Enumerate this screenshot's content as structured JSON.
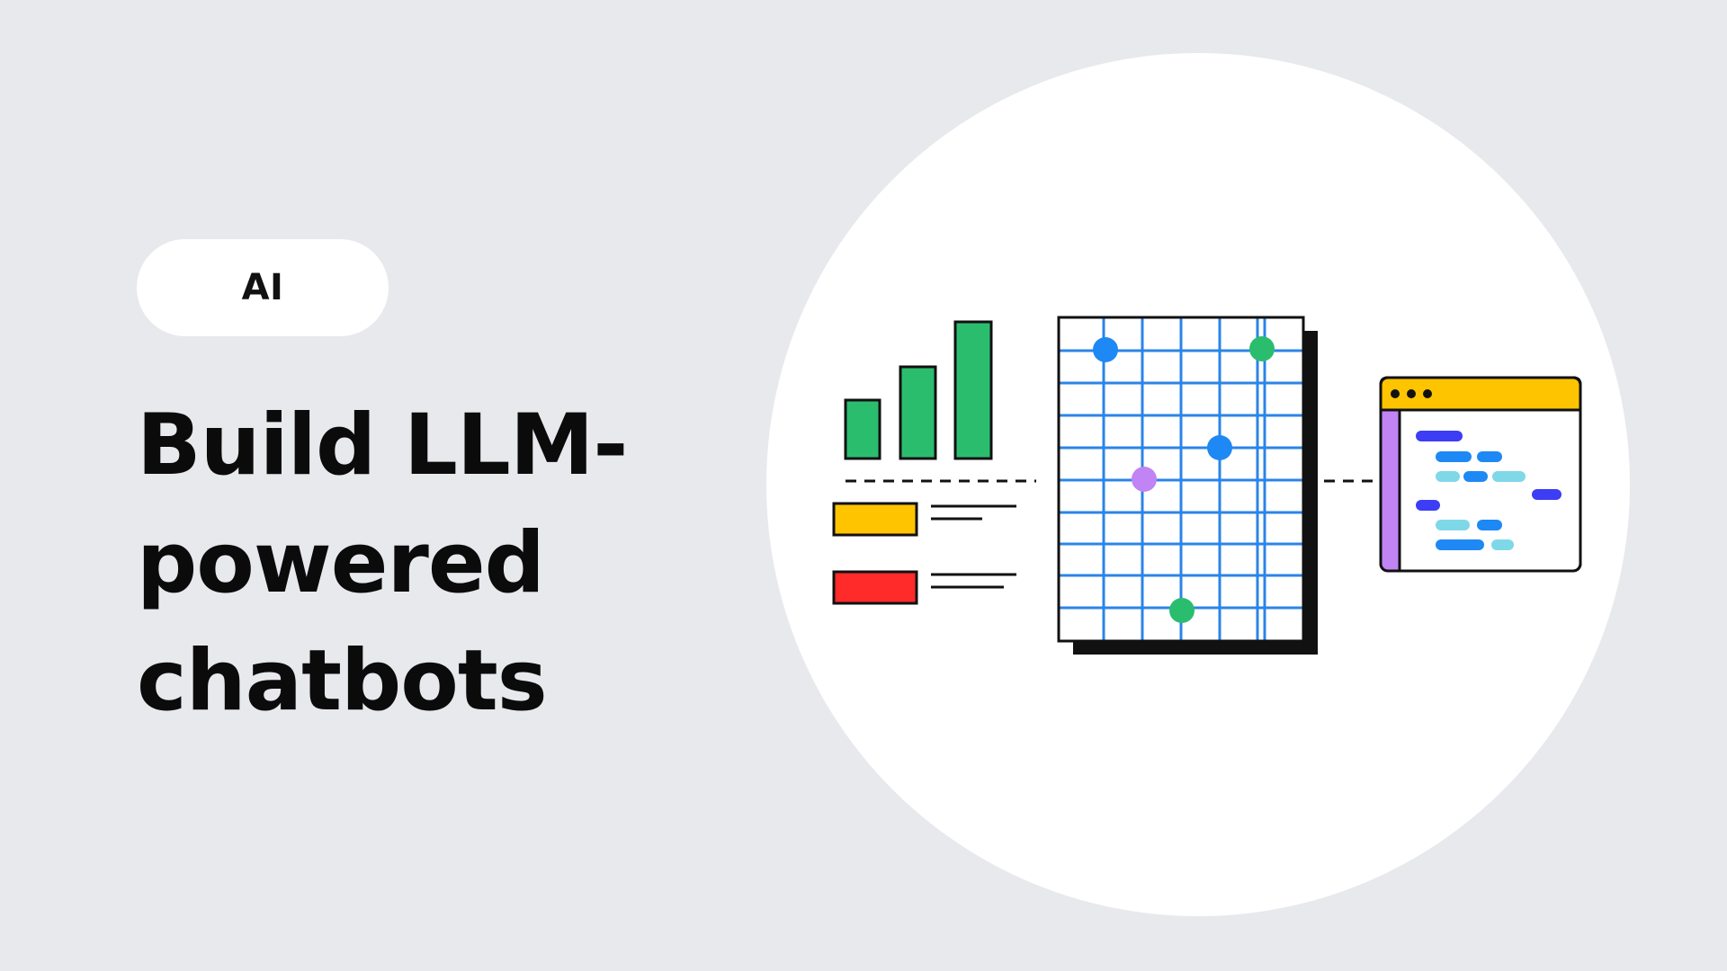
{
  "badge": {
    "label": "AI"
  },
  "title": {
    "line1": "Build LLM-",
    "line2": "powered",
    "line3": "chatbots"
  },
  "colors": {
    "background": "#e8e9ed",
    "green": "#2bbd6e",
    "yellow": "#ffc400",
    "red": "#ff2a2a",
    "blue": "#1e88f5",
    "purple": "#c084f5",
    "indigo": "#3d3df5",
    "cyan": "#7fd8e8",
    "grid_blue": "#2b84e8"
  },
  "icons": {
    "bar_chart": "bar-chart-icon",
    "legend": "legend-icon",
    "grid": "scatter-grid-icon",
    "code_window": "code-window-icon"
  }
}
